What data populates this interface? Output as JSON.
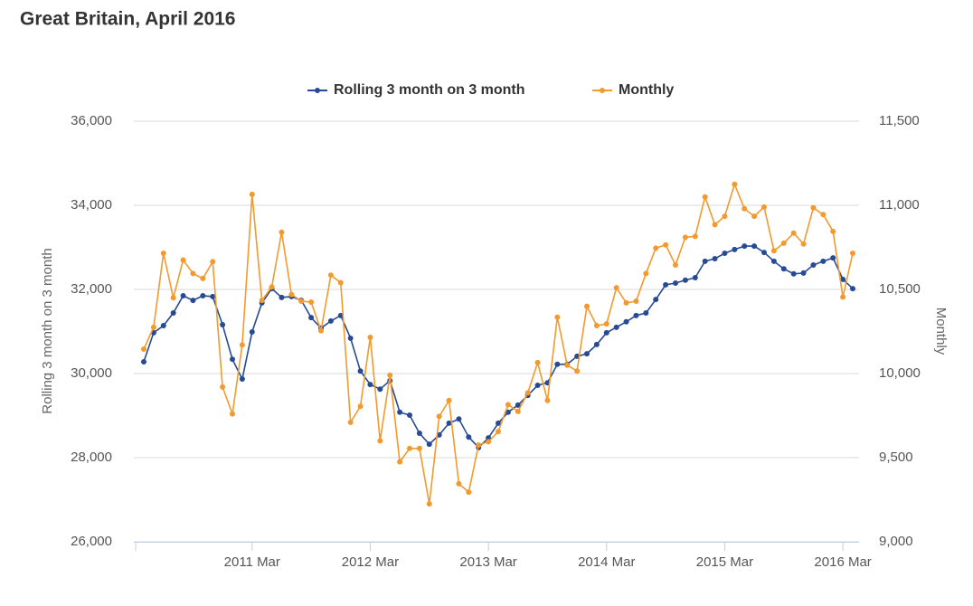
{
  "chart_data": {
    "type": "line",
    "title": "Great Britain, April 2016",
    "y_label": "Rolling 3 month on 3 month",
    "y2_label": "Monthly",
    "categories": [
      null,
      null,
      null,
      null,
      null,
      null,
      null,
      null,
      null,
      null,
      null,
      "2011 Mar",
      null,
      null,
      null,
      null,
      null,
      null,
      null,
      null,
      null,
      null,
      null,
      "2012 Mar",
      null,
      null,
      null,
      null,
      null,
      null,
      null,
      null,
      null,
      null,
      null,
      "2013 Mar",
      null,
      null,
      null,
      null,
      null,
      null,
      null,
      null,
      null,
      null,
      null,
      "2014 Mar",
      null,
      null,
      null,
      null,
      null,
      null,
      null,
      null,
      null,
      null,
      null,
      "2015 Mar",
      null,
      null,
      null,
      null,
      null,
      null,
      null,
      null,
      null,
      null,
      null,
      "2016 Mar",
      null
    ],
    "ylim": [
      26000,
      36000
    ],
    "yticks": [
      {
        "value": 26000,
        "label": "26,000"
      },
      {
        "value": 28000,
        "label": "28,000"
      },
      {
        "value": 30000,
        "label": "30,000"
      },
      {
        "value": 32000,
        "label": "32,000"
      },
      {
        "value": 34000,
        "label": "34,000"
      },
      {
        "value": 36000,
        "label": "36,000"
      }
    ],
    "y2lim": [
      9000,
      11500
    ],
    "y2ticks": [
      {
        "value": 9000,
        "label": "9,000"
      },
      {
        "value": 9500,
        "label": "9,500"
      },
      {
        "value": 10000,
        "label": "10,000"
      },
      {
        "value": 10500,
        "label": "10,500"
      },
      {
        "value": 11000,
        "label": "11,000"
      },
      {
        "value": 11500,
        "label": "11,500"
      }
    ],
    "grid": true,
    "legend": "top",
    "series": [
      {
        "name": "Rolling 3 month on 3 month",
        "color": "#274a94",
        "values": [
          30280,
          30970,
          31140,
          31440,
          31850,
          31740,
          31850,
          31830,
          31160,
          30340,
          29870,
          30990,
          31680,
          32020,
          31810,
          31830,
          31740,
          31330,
          31080,
          31250,
          31380,
          30840,
          30060,
          29740,
          29630,
          29830,
          29080,
          29010,
          28580,
          28320,
          28540,
          28820,
          28920,
          28490,
          28240,
          28470,
          28820,
          29080,
          29250,
          29480,
          29720,
          29780,
          30220,
          30220,
          30410,
          30470,
          30690,
          30970,
          31100,
          31230,
          31380,
          31440,
          31760,
          32110,
          32150,
          32220,
          32280,
          32670,
          32730,
          32860,
          32950,
          33030,
          33030,
          32880,
          32670,
          32490,
          32370,
          32390,
          32580,
          32670,
          32750,
          32240,
          32020
        ]
      },
      {
        "name": "Monthly",
        "color": "#f29a2e",
        "axis": "y2",
        "values": [
          10145,
          10275,
          10715,
          10450,
          10675,
          10595,
          10565,
          10665,
          9920,
          9760,
          10170,
          11065,
          10435,
          10515,
          10840,
          10470,
          10430,
          10425,
          10255,
          10585,
          10540,
          9710,
          9805,
          10215,
          9600,
          9990,
          9475,
          9555,
          9555,
          9225,
          9745,
          9840,
          9345,
          9295,
          9575,
          9595,
          9655,
          9815,
          9775,
          9885,
          10065,
          9840,
          10335,
          10050,
          10015,
          10400,
          10285,
          10295,
          10510,
          10420,
          10430,
          10595,
          10745,
          10765,
          10645,
          10810,
          10815,
          11050,
          10885,
          10935,
          11125,
          10980,
          10935,
          10990,
          10730,
          10775,
          10835,
          10770,
          10985,
          10945,
          10845,
          10455,
          10715
        ]
      }
    ]
  }
}
